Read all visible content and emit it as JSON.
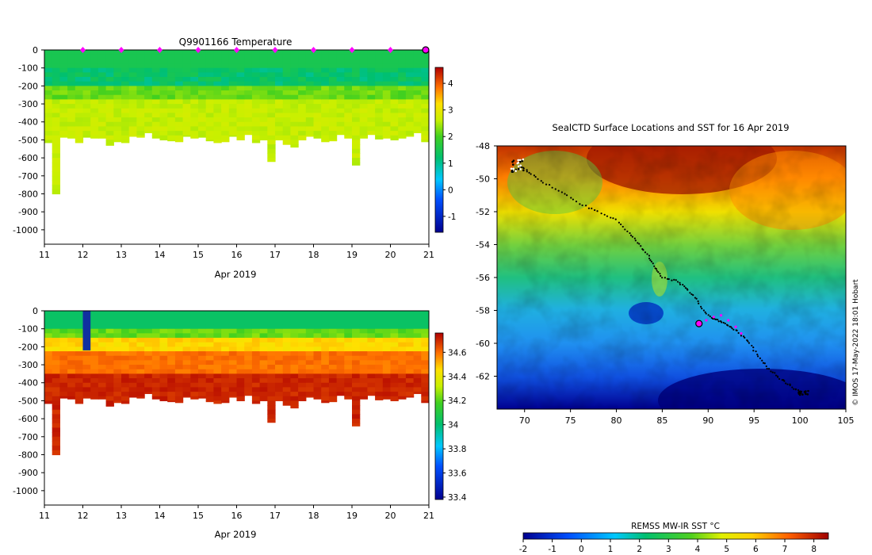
{
  "temperature_panel": {
    "title": "Q9901166  Temperature",
    "xlabel": "Apr 2019",
    "colorbar_ticks": [
      "4",
      "3",
      "2",
      "1",
      "0",
      "-1"
    ],
    "colorbar_range": [
      -1.6,
      4.6
    ]
  },
  "salinity_panel": {
    "title": "",
    "xlabel": "Apr 2019",
    "colorbar_ticks": [
      "34.6",
      "34.4",
      "34.2",
      "34",
      "33.8",
      "33.6",
      "33.4"
    ],
    "colorbar_range": [
      33.38,
      34.76
    ]
  },
  "map_panel": {
    "title": "SealCTD Surface Locations and SST for 16 Apr 2019",
    "colorbar_label": "REMSS MW-IR SST °C",
    "colorbar_ticks": [
      "-2",
      "-1",
      "0",
      "1",
      "2",
      "3",
      "4",
      "5",
      "6",
      "7",
      "8"
    ],
    "credit": "© IMOS 17-May-2022 18:01 Hobart"
  },
  "colors": {
    "marker": "#ff00ff",
    "track": "#000000"
  },
  "chart_data": [
    {
      "type": "heatmap",
      "title": "Q9901166  Temperature",
      "xlabel": "Apr 2019",
      "ylabel": "",
      "x_ticks": [
        "11",
        "12",
        "13",
        "14",
        "15",
        "16",
        "17",
        "18",
        "19",
        "20",
        "21"
      ],
      "y_ticks": [
        "0",
        "-100",
        "-200",
        "-300",
        "-400",
        "-500",
        "-600",
        "-700",
        "-800",
        "-900",
        "-1000"
      ],
      "xlim": [
        11,
        21
      ],
      "ylim": [
        -1080,
        0
      ],
      "profile_times": [
        11.0,
        11.2,
        11.4,
        11.6,
        11.8,
        12.0,
        12.2,
        12.4,
        12.6,
        12.8,
        13.0,
        13.2,
        13.4,
        13.6,
        13.8,
        14.0,
        14.2,
        14.4,
        14.6,
        14.8,
        15.0,
        15.2,
        15.4,
        15.6,
        15.8,
        16.0,
        16.2,
        16.4,
        16.6,
        16.8,
        17.0,
        17.2,
        17.4,
        17.6,
        17.8,
        18.0,
        18.2,
        18.4,
        18.6,
        18.8,
        19.0,
        19.2,
        19.4,
        19.6,
        19.8,
        20.0,
        20.2,
        20.4,
        20.6,
        20.8
      ],
      "max_depth": [
        -515,
        -800,
        -485,
        -490,
        -515,
        -485,
        -490,
        -490,
        -530,
        -510,
        -515,
        -480,
        -485,
        -460,
        -490,
        -500,
        -505,
        -510,
        -480,
        -490,
        -485,
        -505,
        -515,
        -510,
        -480,
        -500,
        -470,
        -515,
        -500,
        -620,
        -500,
        -525,
        -540,
        -500,
        -480,
        -490,
        -510,
        -505,
        -470,
        -490,
        -640,
        -490,
        -470,
        -495,
        -490,
        -500,
        -490,
        -480,
        -460,
        -510
      ],
      "value_summary": {
        "surface": 1.3,
        "subsurface_min": 0.6,
        "deep": 2.2
      },
      "colorbar_range": [
        -1.6,
        4.6
      ],
      "markers_days": [
        12,
        13,
        14,
        15,
        16,
        17,
        18,
        19,
        20
      ],
      "current_marker_day": 21
    },
    {
      "type": "heatmap",
      "title": "",
      "xlabel": "Apr 2019",
      "ylabel": "",
      "x_ticks": [
        "11",
        "12",
        "13",
        "14",
        "15",
        "16",
        "17",
        "18",
        "19",
        "20",
        "21"
      ],
      "y_ticks": [
        "0",
        "-100",
        "-200",
        "-300",
        "-400",
        "-500",
        "-600",
        "-700",
        "-800",
        "-900",
        "-1000"
      ],
      "xlim": [
        11,
        21
      ],
      "ylim": [
        -1080,
        0
      ],
      "value_summary": {
        "surface": 34.0,
        "mid": 34.35,
        "deep": 34.7
      },
      "colorbar_range": [
        33.38,
        34.76
      ],
      "anomaly": {
        "day": 12.1,
        "depth_range": [
          0,
          -220
        ],
        "value": 33.4
      }
    },
    {
      "type": "heatmap",
      "title": "SealCTD Surface Locations and SST for 16 Apr 2019",
      "xlabel": "",
      "ylabel": "",
      "x_ticks": [
        "70",
        "75",
        "80",
        "85",
        "90",
        "95",
        "100",
        "105"
      ],
      "y_ticks": [
        "-48",
        "-50",
        "-52",
        "-54",
        "-56",
        "-58",
        "-60",
        "-62"
      ],
      "xlim": [
        67,
        105
      ],
      "ylim": [
        -64,
        -48
      ],
      "track_lon": [
        69.5,
        70.5,
        72,
        74,
        76,
        78,
        80,
        81.5,
        82.5,
        83.5,
        84.2,
        85,
        86.5,
        87.5,
        88.5,
        89.5,
        90.5,
        91.5,
        92.5,
        93.5,
        94.5,
        95.5,
        96.5,
        97.5,
        98.5,
        99.5,
        100.2
      ],
      "track_lat": [
        -49.2,
        -49.6,
        -50.2,
        -50.8,
        -51.5,
        -52.0,
        -52.5,
        -53.3,
        -54.0,
        -54.7,
        -55.4,
        -56.0,
        -56.2,
        -56.6,
        -57.2,
        -58.0,
        -58.5,
        -58.7,
        -59.0,
        -59.4,
        -60.0,
        -60.8,
        -61.5,
        -62.0,
        -62.4,
        -62.8,
        -63.0
      ],
      "highlight_lon": [
        89.0,
        89.8,
        90.6,
        91.4,
        92.2,
        93.0,
        93.6
      ],
      "highlight_lat": [
        -58.8,
        -58.6,
        -58.4,
        -58.3,
        -58.6,
        -59.0,
        -59.4
      ],
      "current_position": {
        "lon": 89.0,
        "lat": -58.8
      },
      "colorbar_label": "REMSS MW-IR SST °C",
      "colorbar_range": [
        -2,
        8.5
      ]
    }
  ]
}
